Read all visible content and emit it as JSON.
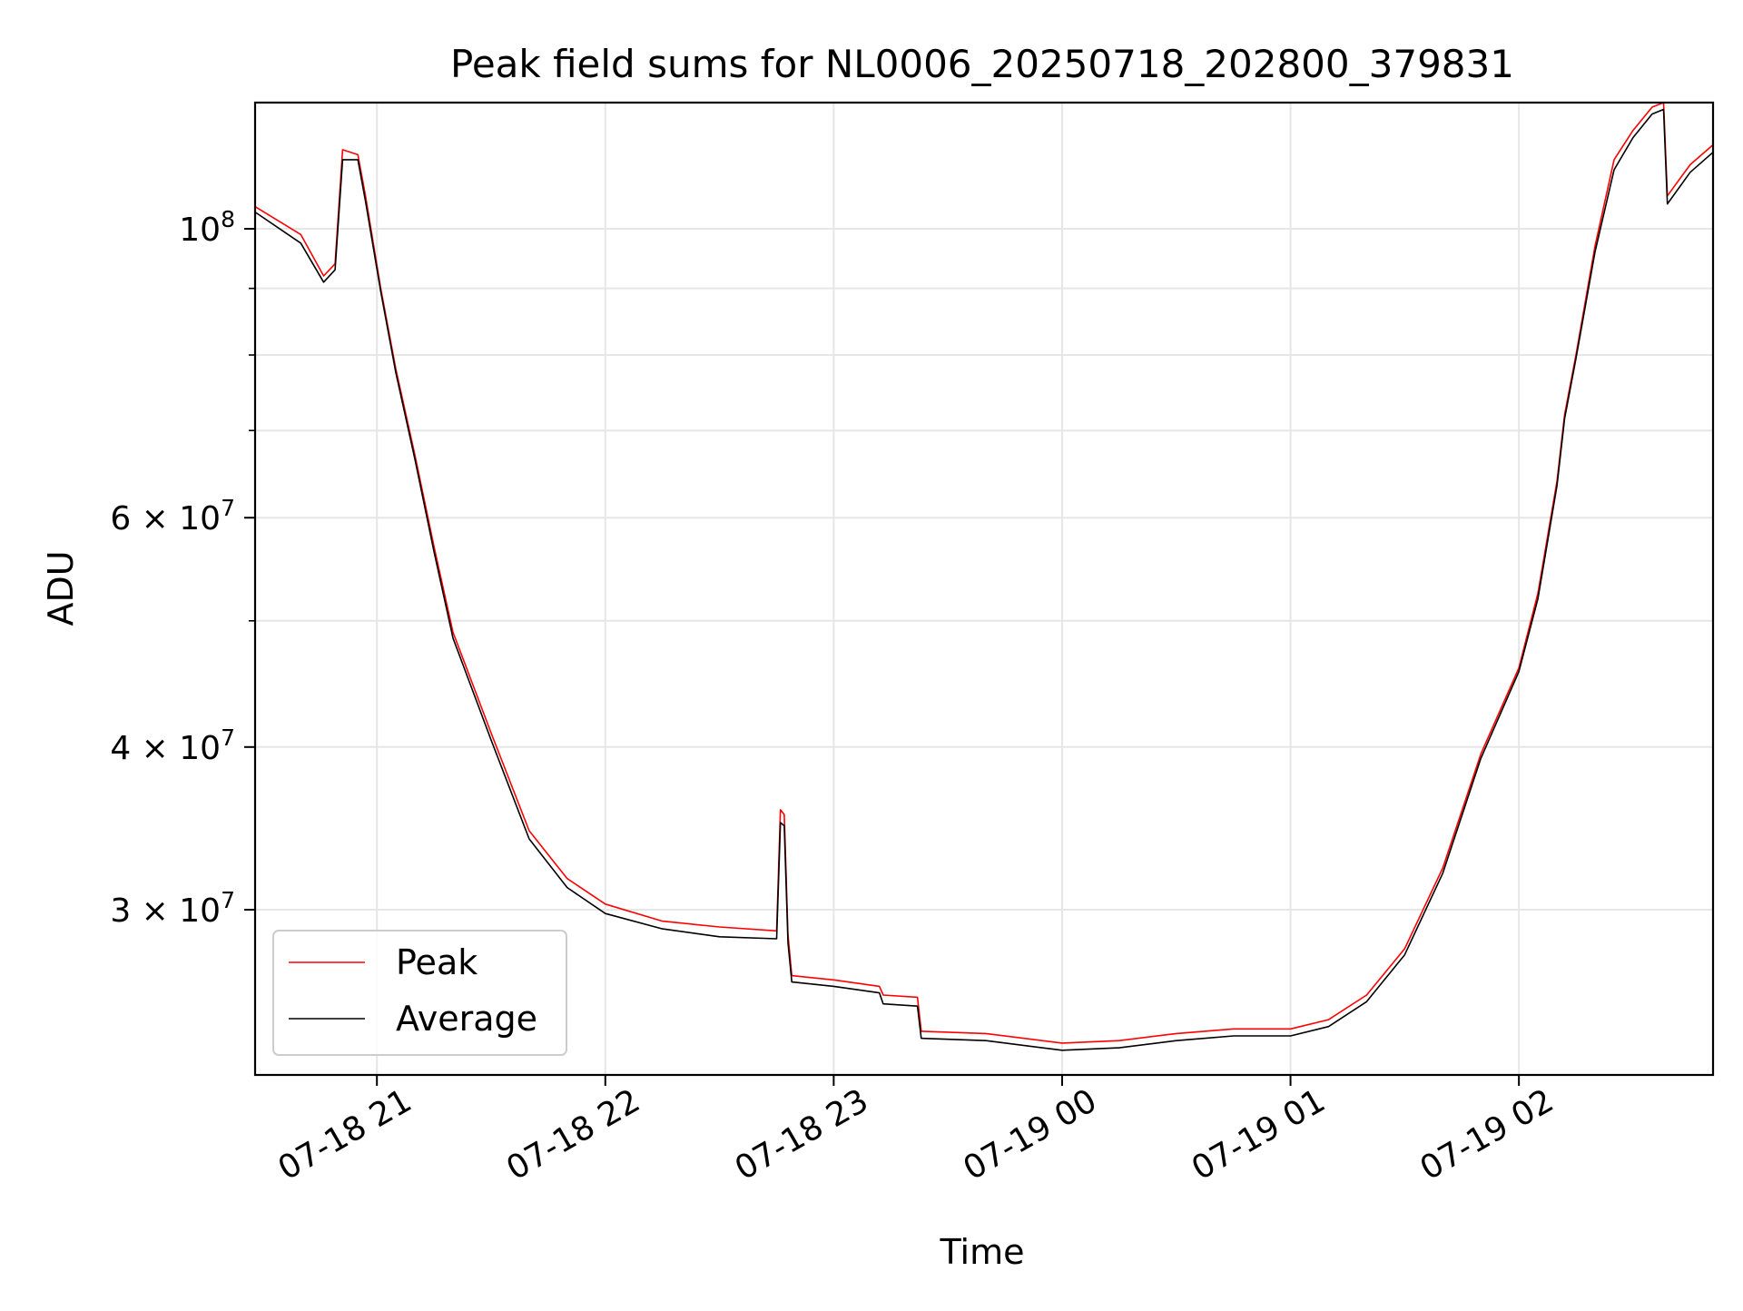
{
  "chart_data": {
    "type": "line",
    "title": "Peak field sums for NL0006_20250718_202800_379831",
    "xlabel": "Time",
    "ylabel": "ADU",
    "yscale": "log",
    "grid": true,
    "legend_position": "lower-left",
    "xlim": [
      "2025-07-18 20:28",
      "2025-07-19 02:51"
    ],
    "ylim": [
      22400000,
      125000000
    ],
    "x_ticks": [
      {
        "value": "2025-07-18 21:00",
        "label": "07-18 21"
      },
      {
        "value": "2025-07-18 22:00",
        "label": "07-18 22"
      },
      {
        "value": "2025-07-18 23:00",
        "label": "07-18 23"
      },
      {
        "value": "2025-07-19 00:00",
        "label": "07-19 00"
      },
      {
        "value": "2025-07-19 01:00",
        "label": "07-19 01"
      },
      {
        "value": "2025-07-19 02:00",
        "label": "07-19 02"
      }
    ],
    "y_ticks": [
      {
        "value": 100000000,
        "base": "10",
        "mant": "",
        "exp": "8"
      },
      {
        "value": 60000000,
        "base": "10",
        "mant": "6 × ",
        "exp": "7"
      },
      {
        "value": 40000000,
        "base": "10",
        "mant": "4 × ",
        "exp": "7"
      },
      {
        "value": 30000000,
        "base": "10",
        "mant": "3 × ",
        "exp": "7"
      }
    ],
    "y_minor_ticks": [
      90000000,
      80000000,
      70000000,
      50000000
    ],
    "series": [
      {
        "name": "Peak",
        "color": "#ff0000",
        "points": [
          [
            "2025-07-18 20:28",
            104000000
          ],
          [
            "2025-07-18 20:40",
            99000000
          ],
          [
            "2025-07-18 20:46",
            92000000
          ],
          [
            "2025-07-18 20:49",
            94000000
          ],
          [
            "2025-07-18 20:51",
            115000000
          ],
          [
            "2025-07-18 20:55",
            114000000
          ],
          [
            "2025-07-18 20:57",
            106000000
          ],
          [
            "2025-07-18 21:01",
            90000000
          ],
          [
            "2025-07-18 21:05",
            78000000
          ],
          [
            "2025-07-18 21:10",
            67000000
          ],
          [
            "2025-07-18 21:15",
            57000000
          ],
          [
            "2025-07-18 21:20",
            49000000
          ],
          [
            "2025-07-18 21:30",
            41000000
          ],
          [
            "2025-07-18 21:40",
            34500000
          ],
          [
            "2025-07-18 21:50",
            31700000
          ],
          [
            "2025-07-18 22:00",
            30300000
          ],
          [
            "2025-07-18 22:15",
            29400000
          ],
          [
            "2025-07-18 22:30",
            29100000
          ],
          [
            "2025-07-18 22:45",
            28900000
          ],
          [
            "2025-07-18 22:46",
            35800000
          ],
          [
            "2025-07-18 22:47",
            35500000
          ],
          [
            "2025-07-18 22:48",
            28700000
          ],
          [
            "2025-07-18 22:49",
            26700000
          ],
          [
            "2025-07-18 23:00",
            26500000
          ],
          [
            "2025-07-18 23:12",
            26200000
          ],
          [
            "2025-07-18 23:13",
            25800000
          ],
          [
            "2025-07-18 23:22",
            25700000
          ],
          [
            "2025-07-18 23:23",
            24200000
          ],
          [
            "2025-07-18 23:40",
            24100000
          ],
          [
            "2025-07-19 00:00",
            23700000
          ],
          [
            "2025-07-19 00:15",
            23800000
          ],
          [
            "2025-07-19 00:30",
            24100000
          ],
          [
            "2025-07-19 00:45",
            24300000
          ],
          [
            "2025-07-19 01:00",
            24300000
          ],
          [
            "2025-07-19 01:10",
            24700000
          ],
          [
            "2025-07-19 01:20",
            25800000
          ],
          [
            "2025-07-19 01:30",
            28000000
          ],
          [
            "2025-07-19 01:40",
            32300000
          ],
          [
            "2025-07-19 01:50",
            39500000
          ],
          [
            "2025-07-19 02:00",
            46000000
          ],
          [
            "2025-07-19 02:05",
            52500000
          ],
          [
            "2025-07-19 02:10",
            64000000
          ],
          [
            "2025-07-19 02:12",
            72000000
          ],
          [
            "2025-07-19 02:15",
            80000000
          ],
          [
            "2025-07-19 02:20",
            97000000
          ],
          [
            "2025-07-19 02:25",
            113000000
          ],
          [
            "2025-07-19 02:30",
            119000000
          ],
          [
            "2025-07-19 02:35",
            124000000
          ],
          [
            "2025-07-19 02:38",
            125000000
          ],
          [
            "2025-07-19 02:39",
            106000000
          ],
          [
            "2025-07-19 02:45",
            112000000
          ],
          [
            "2025-07-19 02:51",
            116000000
          ]
        ]
      },
      {
        "name": "Average",
        "color": "#000000",
        "points": [
          [
            "2025-07-18 20:28",
            103000000
          ],
          [
            "2025-07-18 20:40",
            97500000
          ],
          [
            "2025-07-18 20:46",
            91000000
          ],
          [
            "2025-07-18 20:49",
            93000000
          ],
          [
            "2025-07-18 20:51",
            113000000
          ],
          [
            "2025-07-18 20:55",
            113000000
          ],
          [
            "2025-07-18 20:57",
            105000000
          ],
          [
            "2025-07-18 21:01",
            89500000
          ],
          [
            "2025-07-18 21:05",
            77500000
          ],
          [
            "2025-07-18 21:10",
            66500000
          ],
          [
            "2025-07-18 21:15",
            56500000
          ],
          [
            "2025-07-18 21:20",
            48500000
          ],
          [
            "2025-07-18 21:30",
            40500000
          ],
          [
            "2025-07-18 21:40",
            34000000
          ],
          [
            "2025-07-18 21:50",
            31200000
          ],
          [
            "2025-07-18 22:00",
            29800000
          ],
          [
            "2025-07-18 22:15",
            29000000
          ],
          [
            "2025-07-18 22:30",
            28600000
          ],
          [
            "2025-07-18 22:45",
            28500000
          ],
          [
            "2025-07-18 22:46",
            35000000
          ],
          [
            "2025-07-18 22:47",
            34800000
          ],
          [
            "2025-07-18 22:48",
            28300000
          ],
          [
            "2025-07-18 22:49",
            26400000
          ],
          [
            "2025-07-18 23:00",
            26200000
          ],
          [
            "2025-07-18 23:12",
            25900000
          ],
          [
            "2025-07-18 23:13",
            25400000
          ],
          [
            "2025-07-18 23:22",
            25300000
          ],
          [
            "2025-07-18 23:23",
            23900000
          ],
          [
            "2025-07-18 23:40",
            23800000
          ],
          [
            "2025-07-19 00:00",
            23400000
          ],
          [
            "2025-07-19 00:15",
            23500000
          ],
          [
            "2025-07-19 00:30",
            23800000
          ],
          [
            "2025-07-19 00:45",
            24000000
          ],
          [
            "2025-07-19 01:00",
            24000000
          ],
          [
            "2025-07-19 01:10",
            24400000
          ],
          [
            "2025-07-19 01:20",
            25500000
          ],
          [
            "2025-07-19 01:30",
            27700000
          ],
          [
            "2025-07-19 01:40",
            32000000
          ],
          [
            "2025-07-19 01:50",
            39200000
          ],
          [
            "2025-07-19 02:00",
            45700000
          ],
          [
            "2025-07-19 02:05",
            52000000
          ],
          [
            "2025-07-19 02:10",
            63500000
          ],
          [
            "2025-07-19 02:12",
            71500000
          ],
          [
            "2025-07-19 02:15",
            79500000
          ],
          [
            "2025-07-19 02:20",
            96000000
          ],
          [
            "2025-07-19 02:25",
            111000000
          ],
          [
            "2025-07-19 02:30",
            117500000
          ],
          [
            "2025-07-19 02:35",
            122500000
          ],
          [
            "2025-07-19 02:38",
            123500000
          ],
          [
            "2025-07-19 02:39",
            104500000
          ],
          [
            "2025-07-19 02:45",
            110500000
          ],
          [
            "2025-07-19 02:51",
            114500000
          ]
        ]
      }
    ]
  }
}
